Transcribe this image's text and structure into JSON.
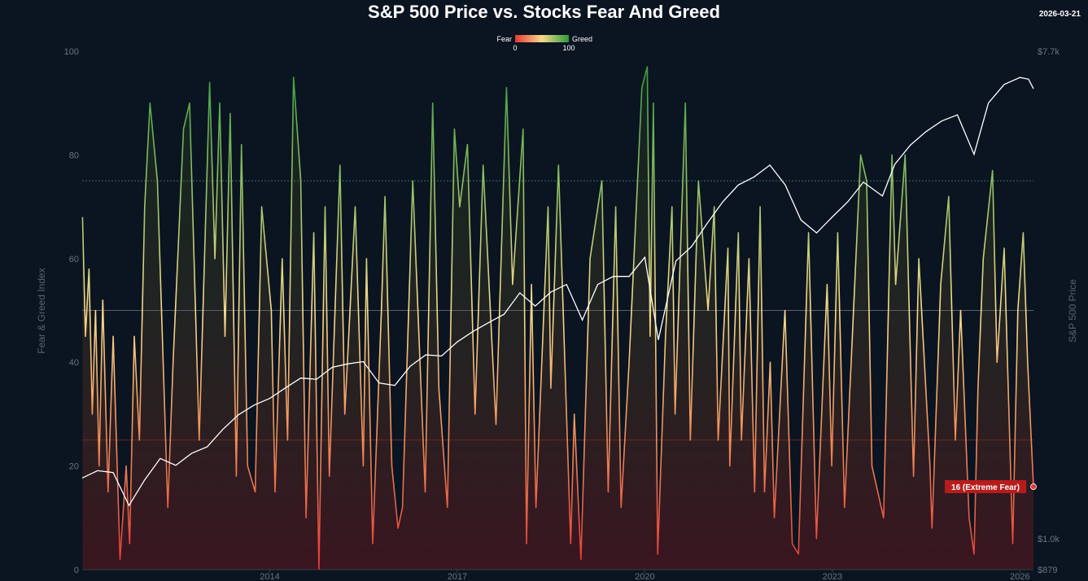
{
  "chart_data": {
    "type": "line",
    "title": "S&P 500 Price vs. Stocks Fear And Greed",
    "date_label": "2026-03-21",
    "legend": {
      "left_label": "Fear",
      "right_label": "Greed",
      "min_label": "0",
      "max_label": "100",
      "colors": [
        "#e53935",
        "#f8d98a",
        "#2e9a3a"
      ],
      "placement": "top-center"
    },
    "y_left": {
      "label": "Fear & Greed Index",
      "range": [
        0,
        100
      ],
      "ticks": [
        "0",
        "20",
        "40",
        "60",
        "80",
        "100"
      ]
    },
    "y_right": {
      "label": "S&P 500 Price",
      "scale": "log",
      "range": [
        879,
        7700
      ],
      "ticks": [
        {
          "value": 879,
          "label": "$879"
        },
        {
          "value": 1000,
          "label": "$1.0k"
        },
        {
          "value": 7700,
          "label": "$7.7k"
        }
      ]
    },
    "x": {
      "range": [
        "2011-01-01",
        "2026-03-21"
      ],
      "ticks": [
        "2014",
        "2017",
        "2020",
        "2023",
        "2026"
      ]
    },
    "reference_lines": [
      {
        "value": 75,
        "color": "#3d6b6b"
      },
      {
        "value": 50,
        "color": "#5b6168"
      },
      {
        "value": 25,
        "color": "#6b2a2a"
      }
    ],
    "end_annotation": {
      "label": "16 (Extreme Fear)",
      "value": 16,
      "color": "#b71c1c"
    },
    "series": [
      {
        "name": "Fear & Greed Index",
        "axis": "left",
        "points": [
          [
            "2011-01-03",
            68
          ],
          [
            "2011-01-20",
            45
          ],
          [
            "2011-02-10",
            58
          ],
          [
            "2011-03-01",
            30
          ],
          [
            "2011-03-20",
            50
          ],
          [
            "2011-04-10",
            20
          ],
          [
            "2011-05-01",
            52
          ],
          [
            "2011-06-01",
            15
          ],
          [
            "2011-07-01",
            45
          ],
          [
            "2011-08-10",
            2
          ],
          [
            "2011-09-15",
            20
          ],
          [
            "2011-10-05",
            5
          ],
          [
            "2011-11-01",
            45
          ],
          [
            "2011-12-01",
            25
          ],
          [
            "2012-01-01",
            70
          ],
          [
            "2012-02-01",
            90
          ],
          [
            "2012-03-15",
            75
          ],
          [
            "2012-05-15",
            12
          ],
          [
            "2012-06-15",
            40
          ],
          [
            "2012-08-15",
            85
          ],
          [
            "2012-09-20",
            90
          ],
          [
            "2012-11-15",
            25
          ],
          [
            "2013-01-15",
            94
          ],
          [
            "2013-02-15",
            60
          ],
          [
            "2013-03-15",
            90
          ],
          [
            "2013-04-15",
            45
          ],
          [
            "2013-05-15",
            88
          ],
          [
            "2013-06-20",
            18
          ],
          [
            "2013-07-20",
            82
          ],
          [
            "2013-08-25",
            20
          ],
          [
            "2013-10-08",
            15
          ],
          [
            "2013-11-15",
            70
          ],
          [
            "2014-01-10",
            50
          ],
          [
            "2014-02-01",
            15
          ],
          [
            "2014-03-15",
            60
          ],
          [
            "2014-04-15",
            25
          ],
          [
            "2014-05-20",
            95
          ],
          [
            "2014-07-01",
            75
          ],
          [
            "2014-08-01",
            10
          ],
          [
            "2014-09-15",
            65
          ],
          [
            "2014-10-15",
            0
          ],
          [
            "2014-11-20",
            70
          ],
          [
            "2014-12-15",
            18
          ],
          [
            "2015-02-15",
            78
          ],
          [
            "2015-03-15",
            30
          ],
          [
            "2015-05-15",
            70
          ],
          [
            "2015-07-01",
            20
          ],
          [
            "2015-07-20",
            60
          ],
          [
            "2015-08-25",
            5
          ],
          [
            "2015-10-15",
            50
          ],
          [
            "2015-11-05",
            72
          ],
          [
            "2015-12-15",
            20
          ],
          [
            "2016-01-20",
            8
          ],
          [
            "2016-02-15",
            12
          ],
          [
            "2016-04-15",
            75
          ],
          [
            "2016-06-27",
            15
          ],
          [
            "2016-08-10",
            90
          ],
          [
            "2016-09-15",
            35
          ],
          [
            "2016-11-04",
            12
          ],
          [
            "2016-12-15",
            85
          ],
          [
            "2017-01-15",
            70
          ],
          [
            "2017-03-01",
            82
          ],
          [
            "2017-04-15",
            30
          ],
          [
            "2017-06-01",
            78
          ],
          [
            "2017-08-15",
            28
          ],
          [
            "2017-10-15",
            93
          ],
          [
            "2017-11-20",
            55
          ],
          [
            "2018-01-20",
            85
          ],
          [
            "2018-02-09",
            5
          ],
          [
            "2018-03-10",
            55
          ],
          [
            "2018-04-05",
            12
          ],
          [
            "2018-06-15",
            70
          ],
          [
            "2018-07-01",
            35
          ],
          [
            "2018-08-15",
            78
          ],
          [
            "2018-10-25",
            5
          ],
          [
            "2018-11-15",
            30
          ],
          [
            "2018-12-24",
            2
          ],
          [
            "2019-02-15",
            60
          ],
          [
            "2019-04-25",
            75
          ],
          [
            "2019-06-01",
            15
          ],
          [
            "2019-07-15",
            70
          ],
          [
            "2019-08-15",
            12
          ],
          [
            "2019-10-01",
            40
          ],
          [
            "2019-12-15",
            93
          ],
          [
            "2020-01-15",
            97
          ],
          [
            "2020-02-01",
            45
          ],
          [
            "2020-02-20",
            90
          ],
          [
            "2020-03-16",
            3
          ],
          [
            "2020-05-01",
            45
          ],
          [
            "2020-06-08",
            70
          ],
          [
            "2020-06-26",
            30
          ],
          [
            "2020-08-25",
            90
          ],
          [
            "2020-09-23",
            25
          ],
          [
            "2020-11-10",
            75
          ],
          [
            "2021-01-05",
            50
          ],
          [
            "2021-02-10",
            70
          ],
          [
            "2021-03-05",
            25
          ],
          [
            "2021-05-01",
            62
          ],
          [
            "2021-05-12",
            20
          ],
          [
            "2021-07-01",
            65
          ],
          [
            "2021-07-19",
            25
          ],
          [
            "2021-09-01",
            60
          ],
          [
            "2021-10-04",
            15
          ],
          [
            "2021-11-05",
            70
          ],
          [
            "2021-12-01",
            15
          ],
          [
            "2022-01-03",
            40
          ],
          [
            "2022-01-27",
            10
          ],
          [
            "2022-03-30",
            50
          ],
          [
            "2022-05-12",
            5
          ],
          [
            "2022-06-17",
            3
          ],
          [
            "2022-08-15",
            65
          ],
          [
            "2022-09-30",
            6
          ],
          [
            "2022-12-01",
            55
          ],
          [
            "2022-12-28",
            20
          ],
          [
            "2023-02-01",
            65
          ],
          [
            "2023-03-13",
            12
          ],
          [
            "2023-06-15",
            80
          ],
          [
            "2023-07-20",
            75
          ],
          [
            "2023-08-20",
            20
          ],
          [
            "2023-10-27",
            10
          ],
          [
            "2023-12-15",
            80
          ],
          [
            "2024-01-05",
            55
          ],
          [
            "2024-03-01",
            80
          ],
          [
            "2024-04-19",
            18
          ],
          [
            "2024-05-20",
            60
          ],
          [
            "2024-07-24",
            20
          ],
          [
            "2024-08-05",
            8
          ],
          [
            "2024-09-25",
            55
          ],
          [
            "2024-11-11",
            72
          ],
          [
            "2024-12-20",
            25
          ],
          [
            "2025-01-20",
            50
          ],
          [
            "2025-03-10",
            10
          ],
          [
            "2025-04-08",
            3
          ],
          [
            "2025-05-01",
            35
          ],
          [
            "2025-06-01",
            60
          ],
          [
            "2025-07-25",
            77
          ],
          [
            "2025-08-20",
            40
          ],
          [
            "2025-10-01",
            62
          ],
          [
            "2025-11-20",
            5
          ],
          [
            "2025-12-20",
            50
          ],
          [
            "2026-01-20",
            65
          ],
          [
            "2026-02-15",
            40
          ],
          [
            "2026-03-21",
            16
          ]
        ]
      },
      {
        "name": "S&P 500 Price",
        "axis": "right",
        "color": "#ffffff",
        "points": [
          [
            "2011-01-01",
            1290
          ],
          [
            "2011-04-01",
            1330
          ],
          [
            "2011-07-01",
            1320
          ],
          [
            "2011-10-01",
            1150
          ],
          [
            "2012-01-01",
            1280
          ],
          [
            "2012-04-01",
            1400
          ],
          [
            "2012-07-01",
            1360
          ],
          [
            "2012-10-01",
            1430
          ],
          [
            "2013-01-01",
            1470
          ],
          [
            "2013-04-01",
            1580
          ],
          [
            "2013-07-01",
            1680
          ],
          [
            "2013-10-01",
            1750
          ],
          [
            "2014-01-01",
            1800
          ],
          [
            "2014-04-01",
            1880
          ],
          [
            "2014-07-01",
            1960
          ],
          [
            "2014-10-01",
            1950
          ],
          [
            "2015-01-01",
            2050
          ],
          [
            "2015-04-01",
            2080
          ],
          [
            "2015-07-01",
            2100
          ],
          [
            "2015-10-01",
            1920
          ],
          [
            "2016-01-01",
            1900
          ],
          [
            "2016-04-01",
            2060
          ],
          [
            "2016-07-01",
            2160
          ],
          [
            "2016-10-01",
            2150
          ],
          [
            "2017-01-01",
            2280
          ],
          [
            "2017-04-01",
            2380
          ],
          [
            "2017-07-01",
            2470
          ],
          [
            "2017-10-01",
            2560
          ],
          [
            "2018-01-01",
            2800
          ],
          [
            "2018-04-01",
            2650
          ],
          [
            "2018-07-01",
            2810
          ],
          [
            "2018-10-01",
            2900
          ],
          [
            "2019-01-01",
            2500
          ],
          [
            "2019-04-01",
            2900
          ],
          [
            "2019-07-01",
            3000
          ],
          [
            "2019-10-01",
            3000
          ],
          [
            "2020-01-01",
            3250
          ],
          [
            "2020-03-20",
            2300
          ],
          [
            "2020-07-01",
            3200
          ],
          [
            "2020-10-01",
            3400
          ],
          [
            "2021-01-01",
            3750
          ],
          [
            "2021-04-01",
            4100
          ],
          [
            "2021-07-01",
            4400
          ],
          [
            "2021-10-01",
            4550
          ],
          [
            "2022-01-01",
            4780
          ],
          [
            "2022-04-01",
            4400
          ],
          [
            "2022-07-01",
            3800
          ],
          [
            "2022-10-01",
            3600
          ],
          [
            "2023-01-01",
            3850
          ],
          [
            "2023-04-01",
            4100
          ],
          [
            "2023-07-01",
            4450
          ],
          [
            "2023-10-20",
            4200
          ],
          [
            "2024-01-01",
            4800
          ],
          [
            "2024-04-01",
            5200
          ],
          [
            "2024-07-01",
            5500
          ],
          [
            "2024-10-01",
            5750
          ],
          [
            "2025-01-01",
            5900
          ],
          [
            "2025-04-08",
            5000
          ],
          [
            "2025-07-01",
            6200
          ],
          [
            "2025-10-01",
            6700
          ],
          [
            "2026-01-01",
            6900
          ],
          [
            "2026-02-20",
            6850
          ],
          [
            "2026-03-21",
            6580
          ]
        ]
      }
    ]
  }
}
